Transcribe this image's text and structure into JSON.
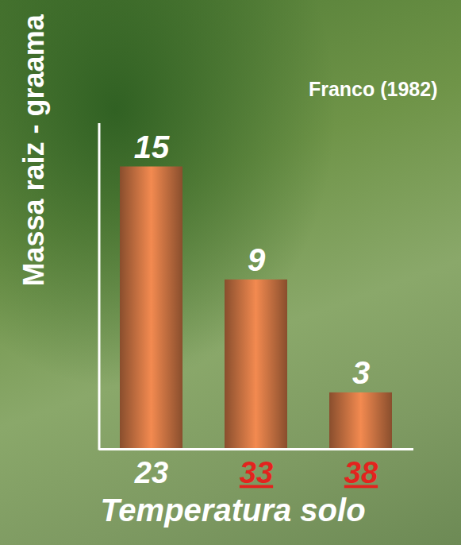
{
  "chart_data": {
    "type": "bar",
    "title": "Franco (1982)",
    "x_label": "Temperatura solo",
    "y_label": "Massa raiz - graama",
    "categories": [
      "23",
      "33",
      "38"
    ],
    "values": [
      15,
      9,
      3
    ],
    "color": "#b0643a",
    "ylim": [
      0,
      17.3
    ],
    "yticks": [],
    "grid": false,
    "data_labels": true,
    "tick_labels": "x"
  }
}
